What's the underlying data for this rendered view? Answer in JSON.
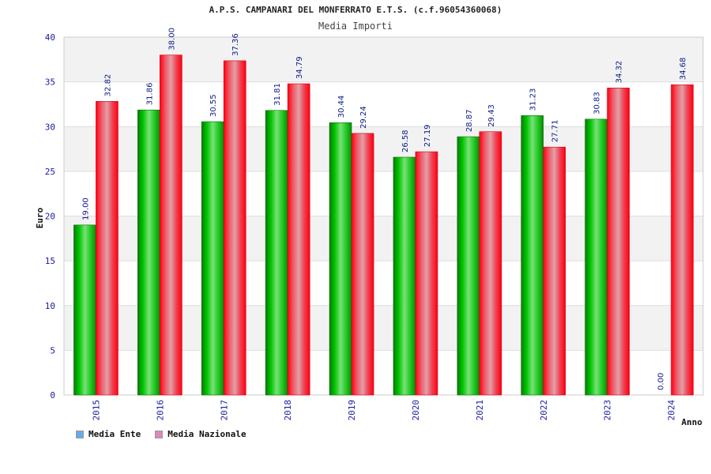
{
  "header": {
    "title": "A.P.S. CAMPANARI DEL MONFERRATO E.T.S. (c.f.96054360068)",
    "subtitle": "Media Importi"
  },
  "chart_data": {
    "type": "bar",
    "title": "Media Importi",
    "xlabel": "Anno",
    "ylabel": "Euro",
    "ylim": [
      0,
      40
    ],
    "yticks": [
      0,
      5,
      10,
      15,
      20,
      25,
      30,
      35,
      40
    ],
    "grid": "horizontal bands",
    "legend_position": "bottom-left",
    "categories": [
      "2015",
      "2016",
      "2017",
      "2018",
      "2019",
      "2020",
      "2021",
      "2022",
      "2023",
      "2024"
    ],
    "series": [
      {
        "name": "Media Ente",
        "values": [
          19.0,
          31.86,
          30.55,
          31.81,
          30.44,
          26.58,
          28.87,
          31.23,
          30.83,
          0.0
        ],
        "labels": [
          "19.00",
          "31.86",
          "30.55",
          "31.81",
          "30.44",
          "26.58",
          "28.87",
          "31.23",
          "30.83",
          "0.00"
        ],
        "color": "#11bb11",
        "legend_color": "#66aaee"
      },
      {
        "name": "Media Nazionale",
        "values": [
          32.82,
          38.0,
          37.36,
          34.79,
          29.24,
          27.19,
          29.43,
          27.71,
          34.32,
          34.68
        ],
        "labels": [
          "32.82",
          "38.00",
          "37.36",
          "34.79",
          "29.24",
          "27.19",
          "29.43",
          "27.71",
          "34.32",
          "34.68"
        ],
        "color": "#ee1122",
        "legend_color": "#dd88bb"
      }
    ]
  }
}
